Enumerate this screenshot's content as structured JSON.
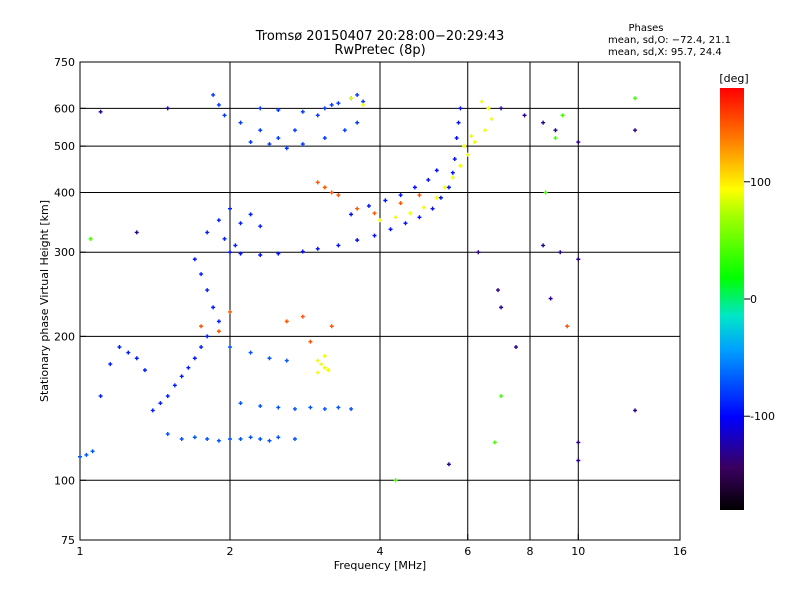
{
  "chart_data": {
    "type": "scatter",
    "title": "Tromsø 20150407 20:28:00−20:29:43",
    "subtitle": "RwPretec (8p)",
    "xlabel": "Frequency [MHz]",
    "ylabel": "Stationary phase Virtual Height [km]",
    "xscale": "log",
    "yscale": "log",
    "xlim": [
      1,
      16
    ],
    "ylim": [
      75,
      750
    ],
    "x_ticks": [
      1,
      2,
      4,
      6,
      8,
      10,
      16
    ],
    "y_ticks": [
      75,
      100,
      200,
      300,
      400,
      500,
      600,
      750
    ],
    "x_gridlines": [
      2,
      4,
      6,
      8,
      10
    ],
    "y_gridlines": [
      100,
      200,
      300,
      400,
      500,
      600
    ],
    "grid": true,
    "phase_stats": {
      "heading": "Phases",
      "o_line": "mean, sd,O: −72.4, 21.1",
      "x_line": "mean, sd,X:  95.7, 24.4"
    },
    "colorbar": {
      "label": "[deg]",
      "range": [
        -180,
        180
      ],
      "ticks": [
        100,
        0,
        -100
      ],
      "placement": "right"
    },
    "series": [
      {
        "name": "",
        "phase": -80,
        "points": [
          [
            1.85,
            640
          ],
          [
            1.9,
            610
          ],
          [
            1.95,
            580
          ],
          [
            2.1,
            560
          ],
          [
            2.3,
            540
          ],
          [
            2.5,
            520
          ],
          [
            2.7,
            540
          ],
          [
            3.0,
            580
          ],
          [
            3.2,
            610
          ],
          [
            3.5,
            630
          ],
          [
            3.7,
            620
          ],
          [
            2.2,
            510
          ],
          [
            2.4,
            505
          ],
          [
            2.6,
            495
          ],
          [
            2.8,
            505
          ],
          [
            3.1,
            520
          ],
          [
            3.4,
            540
          ],
          [
            3.6,
            560
          ],
          [
            2.3,
            600
          ],
          [
            2.5,
            595
          ],
          [
            2.8,
            590
          ],
          [
            3.1,
            600
          ],
          [
            3.3,
            615
          ],
          [
            3.6,
            640
          ]
        ]
      },
      {
        "name": "",
        "phase": -95,
        "points": [
          [
            2.0,
            300
          ],
          [
            2.1,
            298
          ],
          [
            2.3,
            296
          ],
          [
            2.5,
            298
          ],
          [
            2.8,
            301
          ],
          [
            3.0,
            305
          ],
          [
            3.3,
            310
          ],
          [
            3.6,
            318
          ],
          [
            3.9,
            325
          ],
          [
            4.2,
            335
          ],
          [
            4.5,
            345
          ],
          [
            4.8,
            355
          ],
          [
            5.1,
            370
          ],
          [
            5.3,
            390
          ],
          [
            5.5,
            410
          ],
          [
            5.6,
            440
          ],
          [
            5.65,
            470
          ],
          [
            5.7,
            520
          ],
          [
            5.75,
            560
          ],
          [
            5.8,
            600
          ],
          [
            3.5,
            360
          ],
          [
            3.8,
            375
          ],
          [
            4.1,
            385
          ],
          [
            4.4,
            395
          ],
          [
            4.7,
            410
          ],
          [
            5.0,
            425
          ],
          [
            5.2,
            445
          ]
        ]
      },
      {
        "name": "",
        "phase": -90,
        "points": [
          [
            1.7,
            290
          ],
          [
            1.75,
            270
          ],
          [
            1.8,
            250
          ],
          [
            1.85,
            230
          ],
          [
            1.9,
            215
          ],
          [
            1.8,
            200
          ],
          [
            1.75,
            190
          ],
          [
            1.7,
            180
          ],
          [
            1.65,
            172
          ],
          [
            1.6,
            165
          ],
          [
            1.55,
            158
          ],
          [
            1.5,
            150
          ],
          [
            1.45,
            145
          ],
          [
            1.4,
            140
          ],
          [
            1.35,
            170
          ],
          [
            1.3,
            180
          ],
          [
            1.25,
            185
          ],
          [
            1.2,
            190
          ],
          [
            1.15,
            175
          ],
          [
            1.1,
            150
          ],
          [
            1.8,
            330
          ],
          [
            1.9,
            350
          ],
          [
            2.0,
            370
          ],
          [
            2.1,
            345
          ],
          [
            2.2,
            360
          ],
          [
            2.3,
            340
          ],
          [
            1.95,
            320
          ],
          [
            2.05,
            310
          ]
        ]
      },
      {
        "name": "",
        "phase": -70,
        "points": [
          [
            1.5,
            125
          ],
          [
            1.6,
            122
          ],
          [
            1.7,
            123
          ],
          [
            1.8,
            122
          ],
          [
            1.9,
            121
          ],
          [
            2.0,
            122
          ],
          [
            2.1,
            122
          ],
          [
            2.2,
            123
          ],
          [
            2.3,
            122
          ],
          [
            2.4,
            121
          ],
          [
            2.5,
            123
          ],
          [
            2.7,
            122
          ],
          [
            2.1,
            145
          ],
          [
            2.3,
            143
          ],
          [
            2.5,
            142
          ],
          [
            2.7,
            141
          ],
          [
            2.9,
            142
          ],
          [
            3.1,
            141
          ],
          [
            3.3,
            142
          ],
          [
            3.5,
            141
          ],
          [
            1.0,
            112
          ],
          [
            1.03,
            113
          ],
          [
            1.06,
            115
          ],
          [
            2.0,
            190
          ],
          [
            2.2,
            185
          ],
          [
            2.4,
            180
          ],
          [
            2.6,
            178
          ]
        ]
      },
      {
        "name": "",
        "phase": 90,
        "points": [
          [
            3.0,
            178
          ],
          [
            3.05,
            175
          ],
          [
            3.1,
            172
          ],
          [
            3.15,
            170
          ],
          [
            3.0,
            168
          ],
          [
            3.1,
            182
          ],
          [
            4.0,
            350
          ],
          [
            4.3,
            355
          ],
          [
            4.6,
            362
          ],
          [
            4.9,
            372
          ],
          [
            5.2,
            390
          ],
          [
            5.4,
            410
          ],
          [
            5.6,
            430
          ],
          [
            5.8,
            455
          ],
          [
            6.0,
            480
          ],
          [
            6.2,
            510
          ],
          [
            6.5,
            540
          ],
          [
            6.7,
            570
          ],
          [
            6.6,
            600
          ],
          [
            6.4,
            620
          ],
          [
            3.5,
            630
          ],
          [
            3.7,
            610
          ],
          [
            5.9,
            500
          ],
          [
            6.1,
            525
          ]
        ]
      },
      {
        "name": "",
        "phase": 150,
        "points": [
          [
            3.0,
            420
          ],
          [
            3.1,
            410
          ],
          [
            3.2,
            400
          ],
          [
            3.3,
            395
          ],
          [
            3.6,
            370
          ],
          [
            3.9,
            362
          ],
          [
            4.4,
            380
          ],
          [
            4.8,
            395
          ],
          [
            2.6,
            215
          ],
          [
            2.8,
            220
          ],
          [
            3.2,
            210
          ],
          [
            1.75,
            210
          ],
          [
            1.9,
            205
          ],
          [
            2.0,
            225
          ],
          [
            2.9,
            195
          ],
          [
            9.5,
            210
          ]
        ]
      },
      {
        "name": "",
        "phase": -130,
        "points": [
          [
            1.1,
            590
          ],
          [
            1.5,
            600
          ],
          [
            7.0,
            600
          ],
          [
            7.8,
            580
          ],
          [
            8.5,
            560
          ],
          [
            9.0,
            540
          ],
          [
            10.0,
            510
          ],
          [
            13.0,
            540
          ],
          [
            6.9,
            250
          ],
          [
            7.0,
            230
          ],
          [
            7.5,
            190
          ],
          [
            8.5,
            310
          ],
          [
            8.8,
            240
          ],
          [
            9.2,
            300
          ],
          [
            10.0,
            290
          ],
          [
            10.0,
            120
          ],
          [
            10.0,
            110
          ],
          [
            6.3,
            300
          ],
          [
            5.5,
            108
          ],
          [
            13.0,
            140
          ],
          [
            1.3,
            330
          ]
        ]
      },
      {
        "name": "",
        "phase": 40,
        "points": [
          [
            9.3,
            580
          ],
          [
            13.0,
            630
          ],
          [
            8.6,
            400
          ],
          [
            9.0,
            520
          ],
          [
            7.0,
            150
          ],
          [
            6.8,
            120
          ],
          [
            4.3,
            100
          ],
          [
            1.05,
            320
          ]
        ]
      }
    ]
  }
}
